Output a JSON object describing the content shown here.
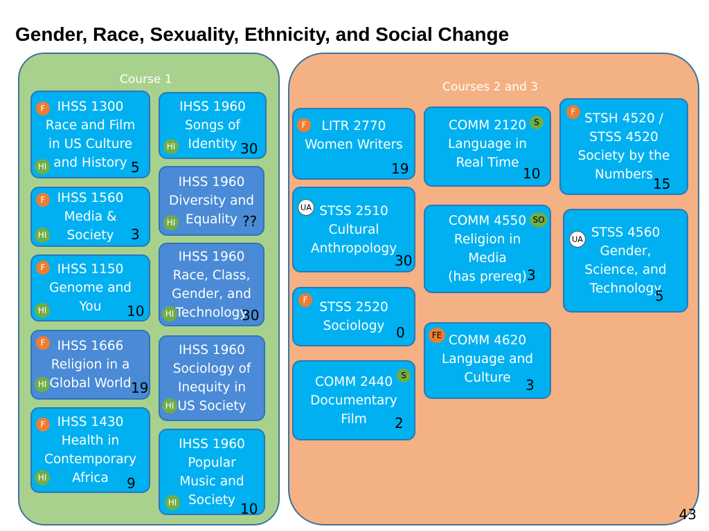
{
  "title": "Gender, Race, Sexuality, Ethnicity, and Social Change",
  "page_number": "43",
  "colors": {
    "course1_panel": "#a9d18e",
    "course23_panel": "#f4b183",
    "course_box": "#00b0f0",
    "ihss1960_box": "#4a8ad6",
    "F_badge": "#ed7d31",
    "HI_badge": "#70ad47"
  },
  "course1": {
    "label": "Course 1",
    "courses": [
      {
        "lines": [
          "IHSS 1300",
          "Race and Film",
          "in US Culture",
          "and History"
        ],
        "count": "5",
        "badges": [
          "F",
          "HI"
        ]
      },
      {
        "lines": [
          "IHSS 1560",
          "Media &",
          "Society"
        ],
        "count": "3",
        "badges": [
          "F",
          "HI"
        ]
      },
      {
        "lines": [
          "IHSS 1150",
          "Genome and",
          "You"
        ],
        "count": "10",
        "badges": [
          "F",
          "HI"
        ]
      },
      {
        "lines": [
          "IHSS 1666",
          "Religion in a",
          "Global World"
        ],
        "count": "19",
        "badges": [
          "F",
          "HI"
        ]
      },
      {
        "lines": [
          "IHSS 1430",
          "Health in",
          "Contemporary",
          "Africa"
        ],
        "count": "9",
        "badges": [
          "F",
          "HI"
        ]
      },
      {
        "lines": [
          "IHSS 1960",
          "Songs of",
          "Identity"
        ],
        "count": "30",
        "badges": [
          "HI"
        ]
      },
      {
        "lines": [
          "IHSS 1960",
          "Diversity and",
          "Equality"
        ],
        "count": "??",
        "badges": [
          "HI"
        ]
      },
      {
        "lines": [
          "IHSS 1960",
          "Race, Class,",
          "Gender, and",
          "Technology"
        ],
        "count": "30",
        "badges": [
          "HI"
        ]
      },
      {
        "lines": [
          "IHSS 1960",
          "Sociology of",
          "Inequity in",
          "US Society"
        ],
        "count": "",
        "badges": [
          "HI"
        ]
      },
      {
        "lines": [
          "IHSS 1960",
          "Popular",
          "Music and",
          "Society"
        ],
        "count": "10",
        "badges": [
          "HI"
        ]
      }
    ]
  },
  "courses23": {
    "label": "Courses 2 and 3",
    "courses": [
      {
        "lines": [
          "LITR 2770",
          "Women Writers"
        ],
        "count": "19",
        "badges": [
          "F"
        ]
      },
      {
        "lines": [
          "STSS 2510",
          "Cultural",
          "Anthropology"
        ],
        "count": "30",
        "badges": [
          "UA"
        ]
      },
      {
        "lines": [
          "STSS 2520",
          "Sociology"
        ],
        "count": "0",
        "badges": [
          "F"
        ]
      },
      {
        "lines": [
          "COMM 2440",
          "Documentary",
          "Film"
        ],
        "count": "2",
        "badges": [
          "S"
        ]
      },
      {
        "lines": [
          "COMM 2120",
          "Language in",
          "Real Time"
        ],
        "count": "10",
        "badges": [
          "S"
        ]
      },
      {
        "lines": [
          "COMM 4550",
          "Religion in",
          "Media",
          "(has prereq)"
        ],
        "count": "3",
        "badges": [
          "SO"
        ]
      },
      {
        "lines": [
          "COMM 4620",
          "Language and",
          "Culture"
        ],
        "count": "3",
        "badges": [
          "FE"
        ]
      },
      {
        "lines": [
          "STSH 4520 /",
          "STSS 4520",
          "Society by the",
          "Numbers"
        ],
        "count": "15",
        "badges": [
          "F"
        ]
      },
      {
        "lines": [
          "STSS 4560",
          "Gender,",
          "Science, and",
          "Technology"
        ],
        "count": "5",
        "badges": [
          "UA"
        ]
      }
    ]
  }
}
